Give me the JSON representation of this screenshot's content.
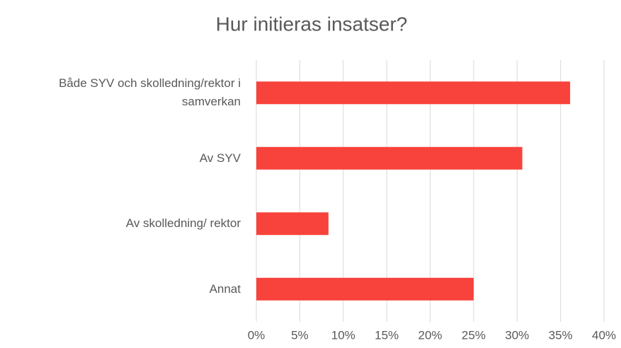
{
  "chart_data": {
    "type": "bar",
    "orientation": "horizontal",
    "title": "Hur initieras insatser?",
    "categories": [
      "Både SYV och skolledning/rektor i samverkan",
      "Av SYV",
      "Av skolledning/ rektor",
      "Annat"
    ],
    "values": [
      36.1,
      30.6,
      8.3,
      25.0
    ],
    "color": "#f8423c",
    "xlim": [
      0,
      40
    ],
    "xticks": [
      {
        "value": 0,
        "label": "0%"
      },
      {
        "value": 5,
        "label": "5%"
      },
      {
        "value": 10,
        "label": "10%"
      },
      {
        "value": 15,
        "label": "15%"
      },
      {
        "value": 20,
        "label": "20%"
      },
      {
        "value": 25,
        "label": "25%"
      },
      {
        "value": 30,
        "label": "30%"
      },
      {
        "value": 35,
        "label": "35%"
      },
      {
        "value": 40,
        "label": "40%"
      }
    ],
    "grid": true
  }
}
